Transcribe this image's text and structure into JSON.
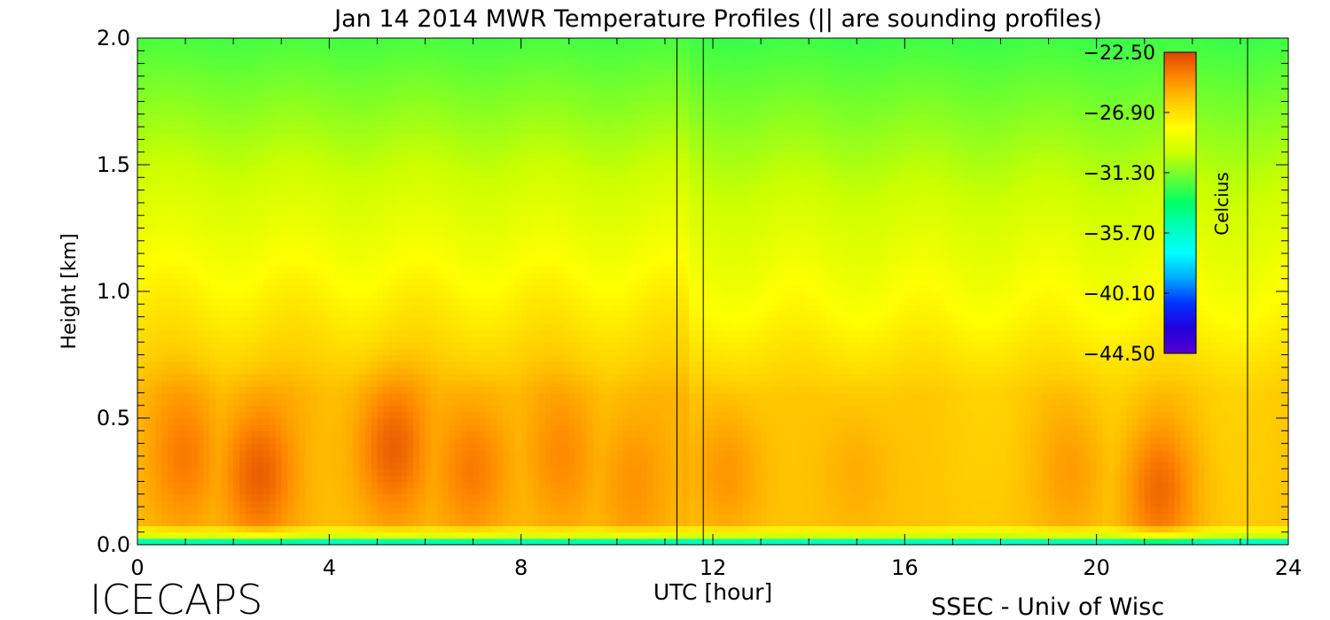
{
  "chart_data": {
    "type": "heatmap",
    "title": "Jan 14 2014 MWR Temperature Profiles (|| are sounding profiles)",
    "xlabel": "UTC [hour]",
    "ylabel": "Height [km]",
    "xlim": [
      0,
      24
    ],
    "ylim": [
      0,
      2
    ],
    "xticks": [
      "0",
      "4",
      "8",
      "12",
      "16",
      "20",
      "24"
    ],
    "yticks": [
      "0.0",
      "0.5",
      "1.0",
      "1.5",
      "2.0"
    ],
    "colorbar": {
      "label": "Celcius",
      "range": [
        -44.5,
        -22.5
      ],
      "ticks": [
        "-22.50",
        "-26.90",
        "-31.30",
        "-35.70",
        "-40.10",
        "-44.50"
      ]
    },
    "sounding_times": [
      11.25,
      11.8,
      23.15
    ],
    "warm_cores": [
      {
        "x": 1.0,
        "y": 0.35,
        "value": -23.8
      },
      {
        "x": 2.5,
        "y": 0.28,
        "value": -22.9
      },
      {
        "x": 5.3,
        "y": 0.38,
        "value": -23.0
      },
      {
        "x": 7.0,
        "y": 0.3,
        "value": -23.6
      },
      {
        "x": 8.9,
        "y": 0.35,
        "value": -24.2
      },
      {
        "x": 10.3,
        "y": 0.25,
        "value": -24.3
      },
      {
        "x": 12.3,
        "y": 0.3,
        "value": -24.0
      },
      {
        "x": 15.0,
        "y": 0.3,
        "value": -24.6
      },
      {
        "x": 19.5,
        "y": 0.3,
        "value": -24.3
      },
      {
        "x": 21.3,
        "y": 0.22,
        "value": -23.0
      }
    ],
    "colors": {
      "colorbar_stops": [
        "#dd4400",
        "#ff8800",
        "#ffcc00",
        "#ffff00",
        "#ccff00",
        "#66ff33",
        "#00ff66",
        "#00ffbb",
        "#00ffff",
        "#00aaff",
        "#0033ff",
        "#2200dd",
        "#5500cc"
      ]
    }
  },
  "footer": {
    "left": "ICECAPS",
    "right": "SSEC - Univ of Wisc"
  }
}
